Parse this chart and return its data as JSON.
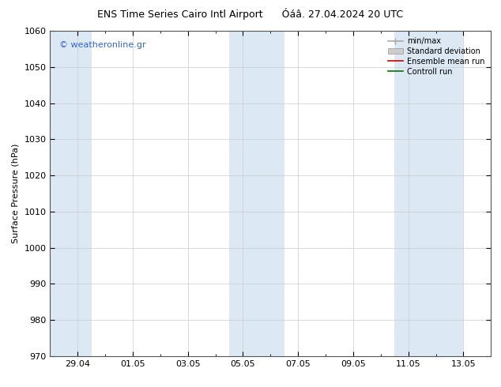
{
  "title_left": "ENS Time Series Cairo Intl Airport",
  "title_right": "Óáâ. 27.04.2024 20 UTC",
  "ylabel": "Surface Pressure (hPa)",
  "ylim": [
    970,
    1060
  ],
  "yticks": [
    970,
    980,
    990,
    1000,
    1010,
    1020,
    1030,
    1040,
    1050,
    1060
  ],
  "xlim": [
    0,
    16
  ],
  "xtick_labels": [
    "29.04",
    "01.05",
    "03.05",
    "05.05",
    "07.05",
    "09.05",
    "11.05",
    "13.05"
  ],
  "xtick_positions": [
    1.0,
    3.0,
    5.0,
    7.0,
    9.0,
    11.0,
    13.0,
    15.0
  ],
  "shaded_bands": [
    {
      "x_start": 0.0,
      "x_end": 1.5
    },
    {
      "x_start": 6.5,
      "x_end": 8.5
    },
    {
      "x_start": 12.5,
      "x_end": 15.0
    }
  ],
  "band_color": "#dce9f5",
  "watermark_text": "© weatheronline.gr",
  "watermark_color": "#3366cc",
  "legend_labels": [
    "min/max",
    "Standard deviation",
    "Ensemble mean run",
    "Controll run"
  ],
  "legend_colors_line": [
    "#aaaaaa",
    "#bbbbbb",
    "#ff0000",
    "#007700"
  ],
  "background_color": "#ffffff",
  "grid_color": "#cccccc",
  "title_fontsize": 9,
  "axis_fontsize": 8,
  "watermark_fontsize": 8,
  "legend_fontsize": 7
}
